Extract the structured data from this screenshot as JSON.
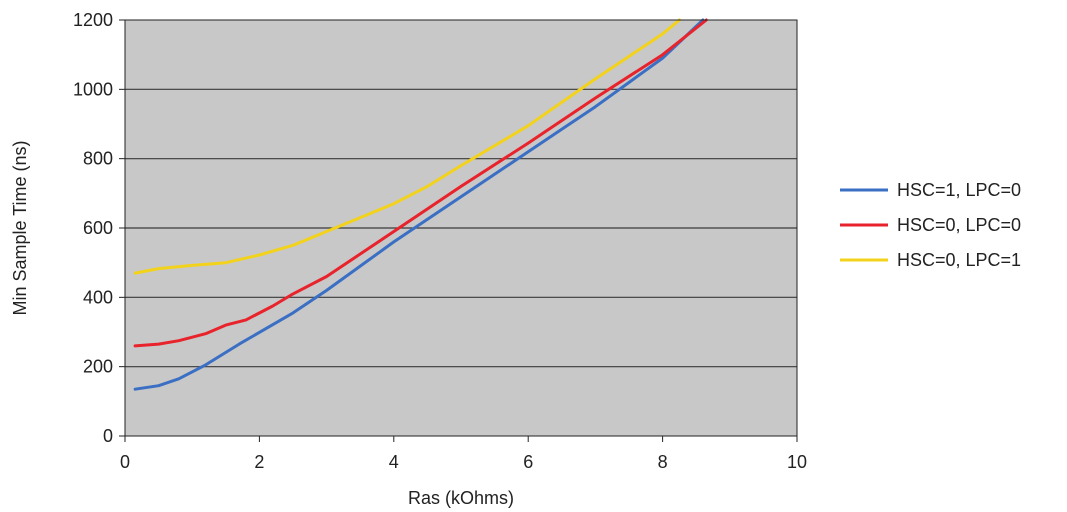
{
  "chart_data": {
    "type": "line",
    "title": "",
    "xlabel": "Ras (kOhms)",
    "ylabel": "Min Sample Time (ns)",
    "xlim": [
      0,
      10
    ],
    "ylim": [
      0,
      1200
    ],
    "x_ticks": [
      "0",
      "2",
      "4",
      "6",
      "8",
      "10"
    ],
    "y_ticks": [
      "0",
      "200",
      "400",
      "600",
      "800",
      "1000",
      "1200"
    ],
    "grid": "horizontal",
    "plot_background": "#c8c8c8",
    "legend_position": "right",
    "series": [
      {
        "name": "HSC=1, LPC=0",
        "color": "#3a6fc4",
        "points": [
          [
            0.15,
            135
          ],
          [
            0.5,
            145
          ],
          [
            0.8,
            165
          ],
          [
            1.2,
            205
          ],
          [
            1.7,
            265
          ],
          [
            2.5,
            355
          ],
          [
            3,
            420
          ],
          [
            4,
            560
          ],
          [
            5,
            690
          ],
          [
            6,
            820
          ],
          [
            7,
            950
          ],
          [
            8,
            1090
          ],
          [
            8.6,
            1200
          ]
        ]
      },
      {
        "name": "HSC=0, LPC=0",
        "color": "#e8232b",
        "points": [
          [
            0.15,
            260
          ],
          [
            0.5,
            265
          ],
          [
            0.8,
            275
          ],
          [
            1.2,
            295
          ],
          [
            1.5,
            320
          ],
          [
            1.8,
            335
          ],
          [
            2.2,
            375
          ],
          [
            2.5,
            410
          ],
          [
            3,
            460
          ],
          [
            4,
            590
          ],
          [
            5,
            720
          ],
          [
            6,
            845
          ],
          [
            7,
            975
          ],
          [
            8,
            1100
          ],
          [
            8.65,
            1200
          ]
        ]
      },
      {
        "name": "HSC=0, LPC=1",
        "color": "#f3d21c",
        "points": [
          [
            0.15,
            470
          ],
          [
            0.5,
            483
          ],
          [
            1,
            492
          ],
          [
            1.5,
            500
          ],
          [
            2,
            522
          ],
          [
            2.5,
            550
          ],
          [
            3,
            590
          ],
          [
            3.5,
            630
          ],
          [
            4,
            670
          ],
          [
            4.5,
            720
          ],
          [
            5,
            780
          ],
          [
            6,
            895
          ],
          [
            7,
            1030
          ],
          [
            8,
            1160
          ],
          [
            8.25,
            1200
          ]
        ]
      }
    ]
  }
}
